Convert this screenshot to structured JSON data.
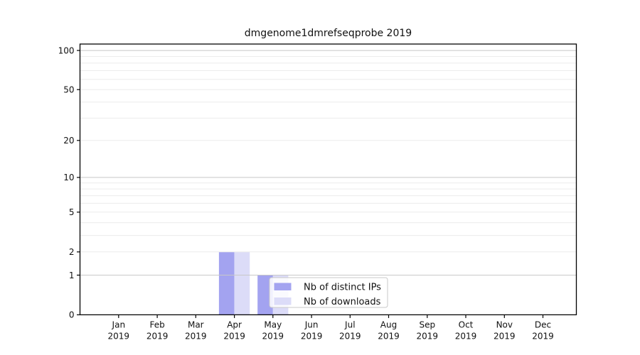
{
  "chart_data": {
    "type": "bar",
    "title": "dmgenome1dmrefseqprobe 2019",
    "yscale": "log1p",
    "categories": [
      "Jan",
      "Feb",
      "Mar",
      "Apr",
      "May",
      "Jun",
      "Jul",
      "Aug",
      "Sep",
      "Oct",
      "Nov",
      "Dec"
    ],
    "category_year": "2019",
    "series": [
      {
        "name": "Nb of distinct IPs",
        "color": "#a3a3f0",
        "values": [
          0,
          0,
          0,
          2,
          1,
          0,
          0,
          0,
          0,
          0,
          0,
          0
        ]
      },
      {
        "name": "Nb of downloads",
        "color": "#dcdcf8",
        "values": [
          0,
          0,
          0,
          2,
          1,
          0,
          0,
          0,
          0,
          0,
          0,
          0
        ]
      }
    ],
    "yticks": [
      0,
      1,
      2,
      5,
      10,
      20,
      50,
      100
    ],
    "ylim": [
      0,
      112
    ],
    "grid": {
      "emphasis_values": [
        1,
        10,
        100
      ],
      "light_values": [
        2,
        3,
        4,
        5,
        6,
        7,
        8,
        9,
        20,
        30,
        40,
        50,
        60,
        70,
        80,
        90,
        110
      ],
      "emphasis_color": "#c8c8c8",
      "light_color": "#ececec"
    },
    "legend": {
      "location": "inside-bottom-center"
    },
    "axis_color": "#000000",
    "background_color": "#ffffff"
  }
}
